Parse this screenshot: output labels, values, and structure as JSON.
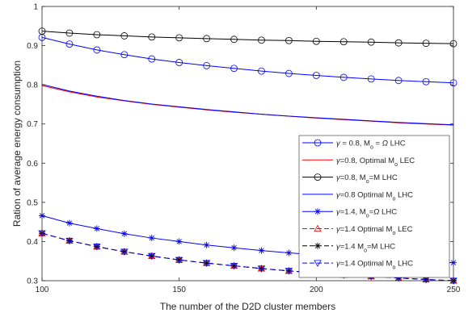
{
  "chart_data": {
    "type": "line",
    "title": "",
    "xlabel": "The number of the D2D cluster members",
    "ylabel": "Ration of average energy consumption",
    "xlim": [
      100,
      250
    ],
    "ylim": [
      0.3,
      1.0
    ],
    "xticks": [
      100,
      150,
      200,
      250
    ],
    "yticks": [
      0.3,
      0.4,
      0.5,
      0.6,
      0.7,
      0.8,
      0.9,
      1.0
    ],
    "xtick_labels": [
      "100",
      "150",
      "200",
      "250"
    ],
    "ytick_labels": [
      "0.3",
      "0.4",
      "0.5",
      "0.6",
      "0.7",
      "0.8",
      "0.9",
      "1"
    ],
    "grid": false,
    "legend_position": "lower-right",
    "x": [
      100,
      110,
      120,
      130,
      140,
      150,
      160,
      170,
      180,
      190,
      200,
      210,
      220,
      230,
      240,
      250
    ],
    "series": [
      {
        "legend": [
          {
            "t": "γ",
            "s": "sym"
          },
          {
            "t": " = 0.8, M"
          },
          {
            "t": "o",
            "s": "sub"
          },
          {
            "t": " = "
          },
          {
            "t": "Ω",
            "s": "sym"
          },
          {
            "t": " LHC"
          }
        ],
        "color": "#0000ff",
        "dash": "solid",
        "marker": "circle",
        "values": [
          0.921,
          0.904,
          0.889,
          0.877,
          0.866,
          0.857,
          0.849,
          0.842,
          0.835,
          0.829,
          0.824,
          0.819,
          0.815,
          0.811,
          0.808,
          0.805
        ]
      },
      {
        "legend": [
          {
            "t": "γ",
            "s": "sym"
          },
          {
            "t": "=0.8, Optimal M"
          },
          {
            "t": "o",
            "s": "sub"
          },
          {
            "t": " LEC"
          }
        ],
        "color": "#ff0000",
        "dash": "solid",
        "marker": "none",
        "values": [
          0.798,
          0.782,
          0.769,
          0.759,
          0.75,
          0.743,
          0.736,
          0.73,
          0.725,
          0.72,
          0.715,
          0.711,
          0.707,
          0.703,
          0.7,
          0.697
        ]
      },
      {
        "legend": [
          {
            "t": "γ",
            "s": "sym"
          },
          {
            "t": "=0.8, M"
          },
          {
            "t": "o",
            "s": "sub"
          },
          {
            "t": "=M LHC"
          }
        ],
        "color": "#000000",
        "dash": "solid",
        "marker": "circle",
        "values": [
          0.937,
          0.932,
          0.928,
          0.925,
          0.922,
          0.92,
          0.918,
          0.916,
          0.914,
          0.913,
          0.911,
          0.91,
          0.909,
          0.907,
          0.906,
          0.905
        ]
      },
      {
        "legend": [
          {
            "t": "γ",
            "s": "sym"
          },
          {
            "t": "=0.8 Optimal M"
          },
          {
            "t": "o",
            "s": "sub"
          },
          {
            "t": " LHC"
          }
        ],
        "color": "#0000ff",
        "dash": "solid",
        "marker": "none",
        "values": [
          0.801,
          0.784,
          0.771,
          0.76,
          0.751,
          0.744,
          0.737,
          0.731,
          0.725,
          0.72,
          0.716,
          0.712,
          0.708,
          0.704,
          0.701,
          0.698
        ]
      },
      {
        "legend": [
          {
            "t": "γ",
            "s": "sym"
          },
          {
            "t": "=1.4, M"
          },
          {
            "t": "o",
            "s": "sub"
          },
          {
            "t": "="
          },
          {
            "t": "Ω",
            "s": "sym"
          },
          {
            "t": " LHC"
          }
        ],
        "color": "#0000ff",
        "dash": "solid",
        "marker": "asterisk",
        "values": [
          0.466,
          0.447,
          0.433,
          0.42,
          0.409,
          0.4,
          0.391,
          0.384,
          0.377,
          0.371,
          0.366,
          0.361,
          0.356,
          0.352,
          0.349,
          0.346
        ]
      },
      {
        "legend": [
          {
            "t": "γ",
            "s": "sym"
          },
          {
            "t": "=1.4 Optimal M"
          },
          {
            "t": "o",
            "s": "sub"
          },
          {
            "t": " LEC"
          }
        ],
        "color": "#ff0000",
        "dash": "dashed",
        "marker": "triangle-up",
        "values": [
          0.421,
          0.402,
          0.387,
          0.374,
          0.363,
          0.353,
          0.345,
          0.338,
          0.331,
          0.325,
          0.32,
          0.315,
          0.311,
          0.307,
          0.303,
          0.3
        ]
      },
      {
        "legend": [
          {
            "t": "γ",
            "s": "sym"
          },
          {
            "t": "=1.4 M"
          },
          {
            "t": "o",
            "s": "sub"
          },
          {
            "t": "=M LHC"
          }
        ],
        "color": "#000000",
        "dash": "dashed",
        "marker": "asterisk",
        "values": [
          0.421,
          0.402,
          0.387,
          0.374,
          0.363,
          0.353,
          0.345,
          0.338,
          0.331,
          0.325,
          0.32,
          0.315,
          0.311,
          0.307,
          0.303,
          0.3
        ]
      },
      {
        "legend": [
          {
            "t": "γ",
            "s": "sym"
          },
          {
            "t": "=1.4 Optimal M"
          },
          {
            "t": "o",
            "s": "sub"
          },
          {
            "t": " LHC"
          }
        ],
        "color": "#0000ff",
        "dash": "dashed",
        "marker": "triangle-down",
        "values": [
          0.421,
          0.402,
          0.387,
          0.374,
          0.363,
          0.353,
          0.345,
          0.338,
          0.331,
          0.325,
          0.32,
          0.315,
          0.311,
          0.307,
          0.303,
          0.3
        ]
      }
    ]
  }
}
